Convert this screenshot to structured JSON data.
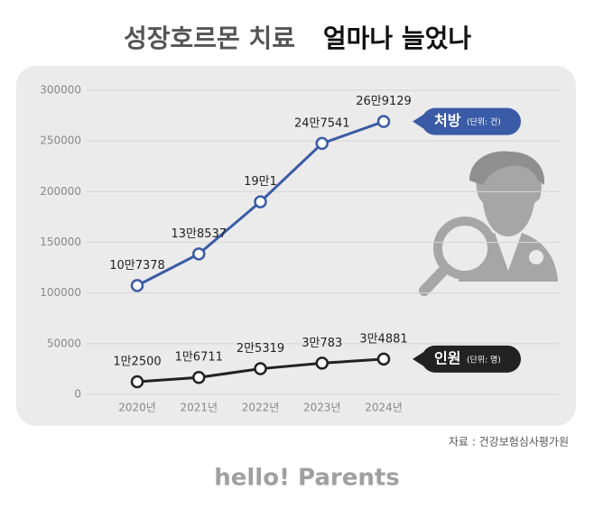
{
  "chart_data": {
    "type": "line",
    "title": "성장호르몬 치료",
    "title_emphasis": "얼마나 늘었나",
    "categories": [
      "2020년",
      "2021년",
      "2022년",
      "2023년",
      "2024년"
    ],
    "series": [
      {
        "name": "처방",
        "unit": "(단위: 건)",
        "color": "#3a5ba6",
        "values": [
          107378,
          138537,
          190001,
          247541,
          269129
        ],
        "value_labels": [
          "10만7378",
          "13만8537",
          "19만1",
          "24만7541",
          "26만9129"
        ]
      },
      {
        "name": "인원",
        "unit": "(단위: 명)",
        "color": "#222222",
        "values": [
          12500,
          16711,
          25319,
          30783,
          34881
        ],
        "value_labels": [
          "1만2500",
          "1만6711",
          "2만5319",
          "3만783",
          "3만4881"
        ]
      }
    ],
    "ylim": [
      0,
      300000
    ],
    "yticks": [
      0,
      50000,
      100000,
      150000,
      200000,
      250000,
      300000
    ],
    "grid": true,
    "source": "자료 : 건강보험심사평가원",
    "brand": "hello! Parents"
  }
}
